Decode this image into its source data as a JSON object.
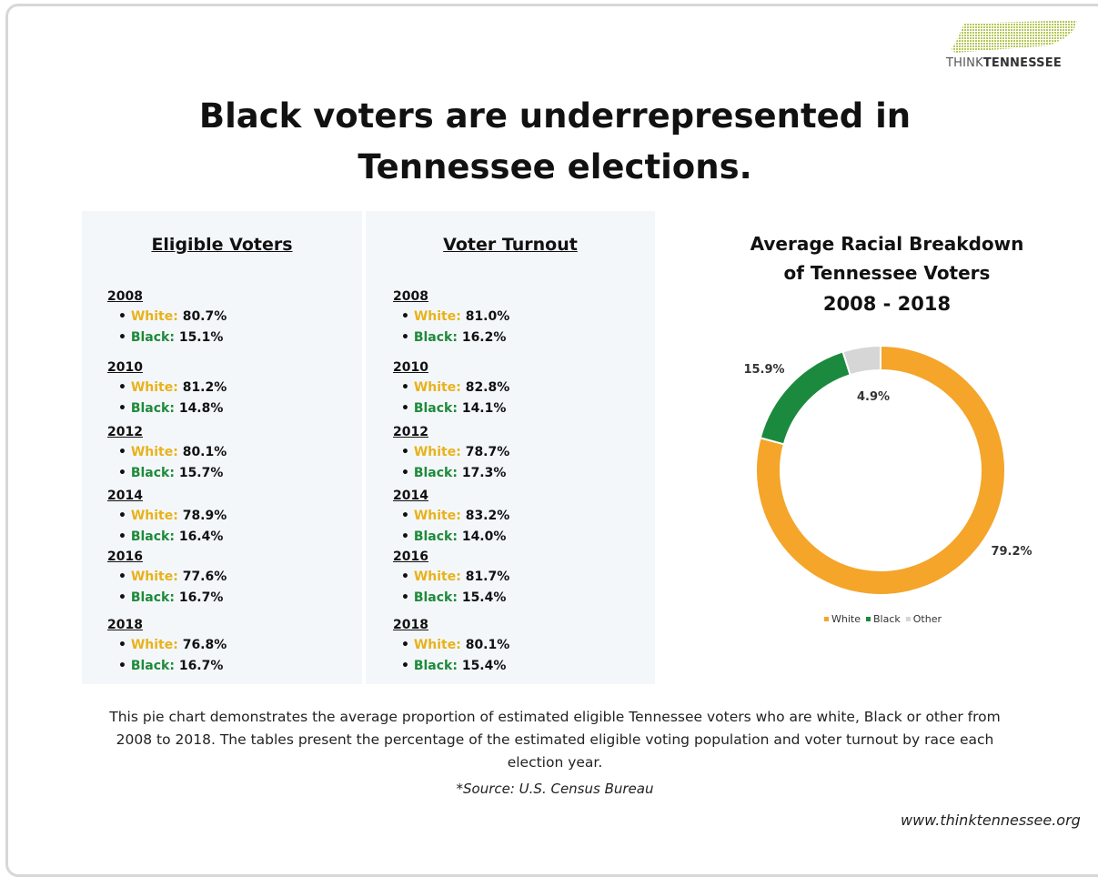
{
  "logo": {
    "prefix": "THINK",
    "bold": "TENNESSEE"
  },
  "title": "Black voters are underrepresented in Tennessee elections.",
  "eligible": {
    "heading": "Eligible Voters",
    "years": [
      {
        "year": "2008",
        "white_label": "White:",
        "white": "80.7%",
        "black_label": "Black:",
        "black": "15.1%"
      },
      {
        "year": "2010",
        "white_label": "White:",
        "white": "81.2%",
        "black_label": "Black:",
        "black": "14.8%"
      },
      {
        "year": "2012",
        "white_label": "White:",
        "white": "80.1%",
        "black_label": "Black:",
        "black": "15.7%"
      },
      {
        "year": "2014",
        "white_label": "White:",
        "white": "78.9%",
        "black_label": "Black:",
        "black": "16.4%"
      },
      {
        "year": "2016",
        "white_label": "White:",
        "white": "77.6%",
        "black_label": "Black:",
        "black": "16.7%"
      },
      {
        "year": "2018",
        "white_label": "White:",
        "white": "76.8%",
        "black_label": "Black:",
        "black": "16.7%"
      }
    ]
  },
  "turnout": {
    "heading": "Voter Turnout",
    "years": [
      {
        "year": "2008",
        "white_label": "White:",
        "white": "81.0%",
        "black_label": "Black:",
        "black": "16.2%"
      },
      {
        "year": "2010",
        "white_label": "White:",
        "white": "82.8%",
        "black_label": "Black:",
        "black": "14.1%"
      },
      {
        "year": "2012",
        "white_label": "White:",
        "white": "78.7%",
        "black_label": "Black:",
        "black": "17.3%"
      },
      {
        "year": "2014",
        "white_label": "White:",
        "white": "83.2%",
        "black_label": "Black:",
        "black": "14.0%"
      },
      {
        "year": "2016",
        "white_label": "White:",
        "white": "81.7%",
        "black_label": "Black:",
        "black": "15.4%"
      },
      {
        "year": "2018",
        "white_label": "White:",
        "white": "80.1%",
        "black_label": "Black:",
        "black": "15.4%"
      }
    ]
  },
  "chart_data": {
    "type": "pie",
    "title": "Average Racial Breakdown of Tennessee Voters",
    "subtitle": "2008 - 2018",
    "categories": [
      "White",
      "Black",
      "Other"
    ],
    "values": [
      79.2,
      15.9,
      4.9
    ],
    "value_labels": [
      "79.2%",
      "15.9%",
      "4.9%"
    ],
    "colors": [
      "#f4a52a",
      "#1c8a3e",
      "#d6d6d6"
    ],
    "legend": "bottom"
  },
  "description": "This pie chart demonstrates the average proportion of estimated eligible Tennessee voters who are white, Black or other from 2008 to 2018. The tables present the percentage of the estimated eligible voting population and voter turnout by race each election year.",
  "source": "*Source: U.S. Census Bureau",
  "website": "www.thinktennessee.org"
}
